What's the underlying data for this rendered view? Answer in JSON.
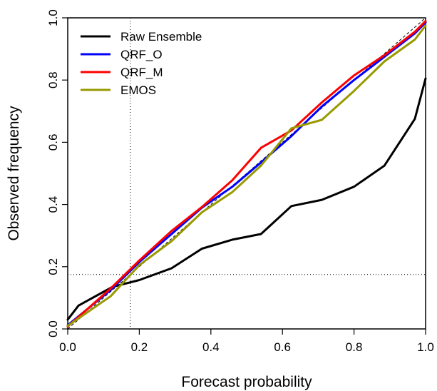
{
  "chart_data": {
    "type": "line",
    "xlabel": "Forecast probability",
    "ylabel": "Observed frequency",
    "xlim": [
      0,
      1
    ],
    "ylim": [
      0,
      1
    ],
    "xticks": [
      0.0,
      0.2,
      0.4,
      0.6,
      0.8,
      1.0
    ],
    "yticks": [
      0.0,
      0.2,
      0.4,
      0.6,
      0.8,
      1.0
    ],
    "tick_labels": [
      "0.0",
      "0.2",
      "0.4",
      "0.6",
      "0.8",
      "1.0"
    ],
    "legend_position": "top-left",
    "reference_lines": {
      "diagonal": "dashed",
      "climatology_x": 0.175,
      "climatology_y": 0.175
    },
    "series": [
      {
        "name": "Raw Ensemble",
        "color": "#000000",
        "x": [
          0.0,
          0.03,
          0.125,
          0.2,
          0.29,
          0.375,
          0.46,
          0.54,
          0.625,
          0.71,
          0.8,
          0.885,
          0.97,
          1.0
        ],
        "y": [
          0.03,
          0.075,
          0.135,
          0.157,
          0.195,
          0.258,
          0.287,
          0.305,
          0.395,
          0.415,
          0.457,
          0.525,
          0.675,
          0.805
        ]
      },
      {
        "name": "QRF_O",
        "color": "#0000ff",
        "x": [
          0.0,
          0.12,
          0.2,
          0.29,
          0.375,
          0.46,
          0.54,
          0.625,
          0.71,
          0.8,
          0.885,
          0.97,
          1.0
        ],
        "y": [
          0.012,
          0.125,
          0.215,
          0.305,
          0.39,
          0.457,
          0.535,
          0.62,
          0.715,
          0.8,
          0.875,
          0.95,
          0.985
        ]
      },
      {
        "name": "QRF_M",
        "color": "#ff0000",
        "x": [
          0.0,
          0.12,
          0.2,
          0.29,
          0.375,
          0.46,
          0.54,
          0.625,
          0.71,
          0.8,
          0.885,
          0.97,
          1.0
        ],
        "y": [
          0.008,
          0.13,
          0.22,
          0.315,
          0.392,
          0.478,
          0.582,
          0.638,
          0.728,
          0.815,
          0.88,
          0.955,
          0.99
        ]
      },
      {
        "name": "EMOS",
        "color": "#999900",
        "x": [
          0.0,
          0.12,
          0.2,
          0.29,
          0.375,
          0.46,
          0.54,
          0.625,
          0.71,
          0.8,
          0.885,
          0.97,
          1.0
        ],
        "y": [
          0.01,
          0.105,
          0.205,
          0.282,
          0.375,
          0.44,
          0.525,
          0.645,
          0.672,
          0.765,
          0.86,
          0.93,
          0.975
        ]
      }
    ]
  }
}
